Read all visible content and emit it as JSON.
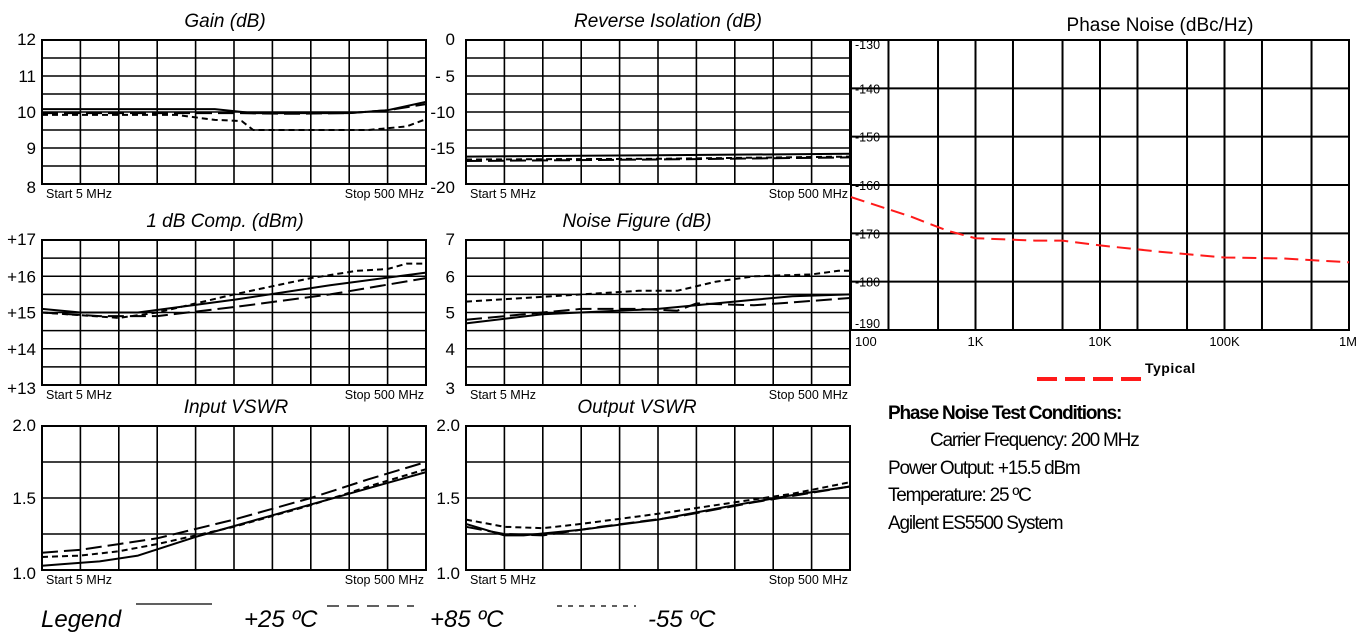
{
  "chart_data": [
    {
      "id": "gain",
      "type": "line",
      "title": "Gain (dB)",
      "ylim": [
        8,
        12
      ],
      "y_ticks": [
        {
          "v": 12,
          "label": "12"
        },
        {
          "v": 11,
          "label": "11"
        },
        {
          "v": 10,
          "label": "10"
        },
        {
          "v": 9,
          "label": "9"
        },
        {
          "v": 8,
          "label": "8"
        }
      ],
      "h_lines": [
        12,
        11.5,
        11,
        10.5,
        10,
        9.5,
        9,
        8.5,
        8
      ],
      "x_start_label": "Start 5 MHz",
      "x_stop_label": "Stop 500 MHz",
      "series": [
        {
          "name": "+25 ºC",
          "style": "solid",
          "points": [
            [
              0,
              10.08
            ],
            [
              0.2,
              10.08
            ],
            [
              0.3,
              10.08
            ],
            [
              0.45,
              10.08
            ],
            [
              0.55,
              9.97
            ],
            [
              0.65,
              9.97
            ],
            [
              0.8,
              9.97
            ],
            [
              0.9,
              10.05
            ],
            [
              1,
              10.28
            ]
          ]
        },
        {
          "name": "+85 ºC",
          "style": "dashed",
          "points": [
            [
              0,
              9.97
            ],
            [
              0.2,
              9.97
            ],
            [
              0.4,
              9.97
            ],
            [
              0.5,
              9.97
            ],
            [
              0.65,
              9.95
            ],
            [
              0.8,
              9.97
            ],
            [
              0.9,
              10.05
            ],
            [
              1,
              10.22
            ]
          ]
        },
        {
          "name": "-55 ºC",
          "style": "dotted",
          "points": [
            [
              0,
              9.92
            ],
            [
              0.35,
              9.92
            ],
            [
              0.45,
              9.78
            ],
            [
              0.52,
              9.75
            ],
            [
              0.55,
              9.5
            ],
            [
              0.7,
              9.5
            ],
            [
              0.85,
              9.5
            ],
            [
              0.95,
              9.6
            ],
            [
              1,
              9.8
            ]
          ]
        }
      ]
    },
    {
      "id": "isolation",
      "type": "line",
      "title": "Reverse Isolation (dB)",
      "ylim": [
        -20,
        0
      ],
      "y_ticks": [
        {
          "v": 0,
          "label": "0"
        },
        {
          "v": -5,
          "label": "- 5"
        },
        {
          "v": -10,
          "label": "-10"
        },
        {
          "v": -15,
          "label": "-15"
        },
        {
          "v": -20,
          "label": "-20"
        }
      ],
      "h_lines": [
        0,
        -2.5,
        -5,
        -7.5,
        -10,
        -12.5,
        -15,
        -17.5,
        -20
      ],
      "x_start_label": "Start 5 MHz",
      "x_stop_label": "Stop 500 MHz",
      "series": [
        {
          "name": "+25 ºC",
          "style": "solid",
          "points": [
            [
              0,
              -16.2
            ],
            [
              0.5,
              -16.0
            ],
            [
              1,
              -15.8
            ]
          ]
        },
        {
          "name": "+85 ºC",
          "style": "dashed",
          "points": [
            [
              0,
              -16.8
            ],
            [
              0.5,
              -16.6
            ],
            [
              1,
              -16.3
            ]
          ]
        },
        {
          "name": "-55 ºC",
          "style": "dotted",
          "points": [
            [
              0,
              -16.6
            ],
            [
              0.5,
              -16.5
            ],
            [
              1,
              -16.2
            ]
          ]
        }
      ]
    },
    {
      "id": "compression",
      "type": "line",
      "title": "1 dB Comp. (dBm)",
      "ylim": [
        13,
        17
      ],
      "y_ticks": [
        {
          "v": 17,
          "label": "+17"
        },
        {
          "v": 16,
          "label": "+16"
        },
        {
          "v": 15,
          "label": "+15"
        },
        {
          "v": 14,
          "label": "+14"
        },
        {
          "v": 13,
          "label": "+13"
        }
      ],
      "h_lines": [
        17,
        16.5,
        16,
        15.5,
        15,
        14.5,
        14,
        13.5,
        13
      ],
      "x_start_label": "Start 5 MHz",
      "x_stop_label": "Stop 500 MHz",
      "series": [
        {
          "name": "+25 ºC",
          "style": "solid",
          "points": [
            [
              0,
              15.1
            ],
            [
              0.1,
              15.0
            ],
            [
              0.25,
              15.0
            ],
            [
              0.5,
              15.35
            ],
            [
              0.75,
              15.75
            ],
            [
              1,
              16.1
            ]
          ]
        },
        {
          "name": "+85 ºC",
          "style": "dashed",
          "points": [
            [
              0,
              15.0
            ],
            [
              0.15,
              14.9
            ],
            [
              0.3,
              14.9
            ],
            [
              0.5,
              15.15
            ],
            [
              0.75,
              15.5
            ],
            [
              1,
              15.95
            ]
          ]
        },
        {
          "name": "-55 ºC",
          "style": "dotted",
          "points": [
            [
              0,
              15.0
            ],
            [
              0.2,
              14.85
            ],
            [
              0.3,
              15.0
            ],
            [
              0.5,
              15.5
            ],
            [
              0.7,
              15.95
            ],
            [
              0.82,
              16.15
            ],
            [
              0.9,
              16.2
            ],
            [
              0.95,
              16.35
            ],
            [
              1,
              16.35
            ]
          ]
        }
      ]
    },
    {
      "id": "noise_figure",
      "type": "line",
      "title": "Noise Figure (dB)",
      "ylim": [
        3,
        7
      ],
      "y_ticks": [
        {
          "v": 7,
          "label": "7"
        },
        {
          "v": 6,
          "label": "6"
        },
        {
          "v": 5,
          "label": "5"
        },
        {
          "v": 4,
          "label": "4"
        },
        {
          "v": 3,
          "label": "3"
        }
      ],
      "h_lines": [
        7,
        6.5,
        6,
        5.5,
        5,
        4.5,
        4,
        3.5,
        3
      ],
      "x_start_label": "Start 5 MHz",
      "x_stop_label": "Stop 500 MHz",
      "series": [
        {
          "name": "+25 ºC",
          "style": "solid",
          "points": [
            [
              0,
              4.7
            ],
            [
              0.2,
              4.95
            ],
            [
              0.5,
              5.1
            ],
            [
              0.75,
              5.35
            ],
            [
              0.85,
              5.45
            ],
            [
              1,
              5.5
            ]
          ]
        },
        {
          "name": "+85 ºC",
          "style": "dashed",
          "points": [
            [
              0,
              4.8
            ],
            [
              0.2,
              5.0
            ],
            [
              0.3,
              5.1
            ],
            [
              0.45,
              5.1
            ],
            [
              0.55,
              5.05
            ],
            [
              0.6,
              5.25
            ],
            [
              0.75,
              5.2
            ],
            [
              1,
              5.4
            ]
          ]
        },
        {
          "name": "-55 ºC",
          "style": "dotted",
          "points": [
            [
              0,
              5.3
            ],
            [
              0.15,
              5.4
            ],
            [
              0.3,
              5.5
            ],
            [
              0.45,
              5.6
            ],
            [
              0.55,
              5.6
            ],
            [
              0.65,
              5.85
            ],
            [
              0.75,
              6.0
            ],
            [
              0.9,
              6.05
            ],
            [
              0.97,
              6.15
            ],
            [
              1,
              6.15
            ]
          ]
        }
      ]
    },
    {
      "id": "input_vswr",
      "type": "line",
      "title": "Input VSWR",
      "ylim": [
        1.0,
        2.0
      ],
      "y_ticks": [
        {
          "v": 2.0,
          "label": "2.0"
        },
        {
          "v": 1.5,
          "label": "1.5"
        },
        {
          "v": 1.0,
          "label": "1.0"
        }
      ],
      "h_lines": [
        2.0,
        1.75,
        1.5,
        1.25,
        1.0
      ],
      "x_start_label": "Start 5 MHz",
      "x_stop_label": "Stop 500 MHz",
      "series": [
        {
          "name": "+25 ºC",
          "style": "solid",
          "points": [
            [
              0,
              1.03
            ],
            [
              0.05,
              1.04
            ],
            [
              0.15,
              1.06
            ],
            [
              0.25,
              1.1
            ],
            [
              0.4,
              1.23
            ],
            [
              0.6,
              1.38
            ],
            [
              0.8,
              1.53
            ],
            [
              1,
              1.68
            ]
          ]
        },
        {
          "name": "+85 ºC",
          "style": "dashed",
          "points": [
            [
              0,
              1.12
            ],
            [
              0.1,
              1.14
            ],
            [
              0.2,
              1.18
            ],
            [
              0.3,
              1.22
            ],
            [
              0.5,
              1.35
            ],
            [
              0.7,
              1.5
            ],
            [
              0.85,
              1.63
            ],
            [
              1,
              1.75
            ]
          ]
        },
        {
          "name": "-55 ºC",
          "style": "dotted",
          "points": [
            [
              0,
              1.09
            ],
            [
              0.1,
              1.1
            ],
            [
              0.2,
              1.13
            ],
            [
              0.3,
              1.18
            ],
            [
              0.5,
              1.3
            ],
            [
              0.7,
              1.45
            ],
            [
              0.85,
              1.58
            ],
            [
              1,
              1.7
            ]
          ]
        }
      ]
    },
    {
      "id": "output_vswr",
      "type": "line",
      "title": "Output VSWR",
      "ylim": [
        1.0,
        2.0
      ],
      "y_ticks": [
        {
          "v": 2.0,
          "label": "2.0"
        },
        {
          "v": 1.5,
          "label": "1.5"
        },
        {
          "v": 1.0,
          "label": "1.0"
        }
      ],
      "h_lines": [
        2.0,
        1.75,
        1.5,
        1.25,
        1.0
      ],
      "x_start_label": "Start 5 MHz",
      "x_stop_label": "Stop 500 MHz",
      "series": [
        {
          "name": "+25 ºC",
          "style": "solid",
          "points": [
            [
              0,
              1.32
            ],
            [
              0.05,
              1.28
            ],
            [
              0.1,
              1.24
            ],
            [
              0.15,
              1.24
            ],
            [
              0.3,
              1.28
            ],
            [
              0.5,
              1.35
            ],
            [
              0.7,
              1.45
            ],
            [
              0.85,
              1.52
            ],
            [
              1,
              1.58
            ]
          ]
        },
        {
          "name": "+85 ºC",
          "style": "dashed",
          "points": [
            [
              0,
              1.3
            ],
            [
              0.1,
              1.25
            ],
            [
              0.2,
              1.24
            ],
            [
              0.35,
              1.3
            ],
            [
              0.55,
              1.37
            ],
            [
              0.75,
              1.47
            ],
            [
              1,
              1.58
            ]
          ]
        },
        {
          "name": "-55 ºC",
          "style": "dotted",
          "points": [
            [
              0,
              1.35
            ],
            [
              0.1,
              1.3
            ],
            [
              0.2,
              1.29
            ],
            [
              0.3,
              1.32
            ],
            [
              0.5,
              1.39
            ],
            [
              0.7,
              1.47
            ],
            [
              0.85,
              1.53
            ],
            [
              1,
              1.61
            ]
          ]
        }
      ]
    },
    {
      "id": "phase_noise",
      "type": "line",
      "title": "Phase Noise (dBc/Hz)",
      "x_log": true,
      "xlim": [
        100,
        1000000
      ],
      "ylim": [
        -190,
        -130
      ],
      "x_ticks": [
        {
          "v": 100,
          "label": "100"
        },
        {
          "v": 1000,
          "label": "1K"
        },
        {
          "v": 10000,
          "label": "10K"
        },
        {
          "v": 100000,
          "label": "100K"
        },
        {
          "v": 1000000,
          "label": "1M"
        }
      ],
      "y_ticks": [
        {
          "v": -130,
          "label": "-130"
        },
        {
          "v": -140,
          "label": "-140"
        },
        {
          "v": -150,
          "label": "-150"
        },
        {
          "v": -160,
          "label": "-160"
        },
        {
          "v": -170,
          "label": "-170"
        },
        {
          "v": -180,
          "label": "-180"
        },
        {
          "v": -190,
          "label": "-190"
        }
      ],
      "series": [
        {
          "name": "Typical",
          "color": "#ff1a1a",
          "style": "dashed",
          "points": [
            [
              100,
              -162.5
            ],
            [
              300,
              -166.5
            ],
            [
              600,
              -169.5
            ],
            [
              1000,
              -171
            ],
            [
              3000,
              -171.5
            ],
            [
              5000,
              -171.5
            ],
            [
              10000,
              -172.5
            ],
            [
              30000,
              -173.8
            ],
            [
              100000,
              -175
            ],
            [
              300000,
              -175.2
            ],
            [
              1000000,
              -176
            ]
          ]
        }
      ]
    }
  ],
  "legend": {
    "title": "Legend",
    "items": [
      {
        "label": "+25 ºC",
        "style": "solid"
      },
      {
        "label": "+85 ºC",
        "style": "dashed"
      },
      {
        "label": "-55 ºC",
        "style": "dotted"
      }
    ]
  },
  "phase_noise_legend": {
    "label": "Typical",
    "color": "#ff1a1a"
  },
  "test_conditions": {
    "title": "Phase Noise Test Conditions:",
    "lines": [
      "Carrier Frequency: 200 MHz",
      "Power Output: +15.5 dBm",
      "Temperature: 25 ºC",
      "Agilent ES5500 System"
    ]
  }
}
